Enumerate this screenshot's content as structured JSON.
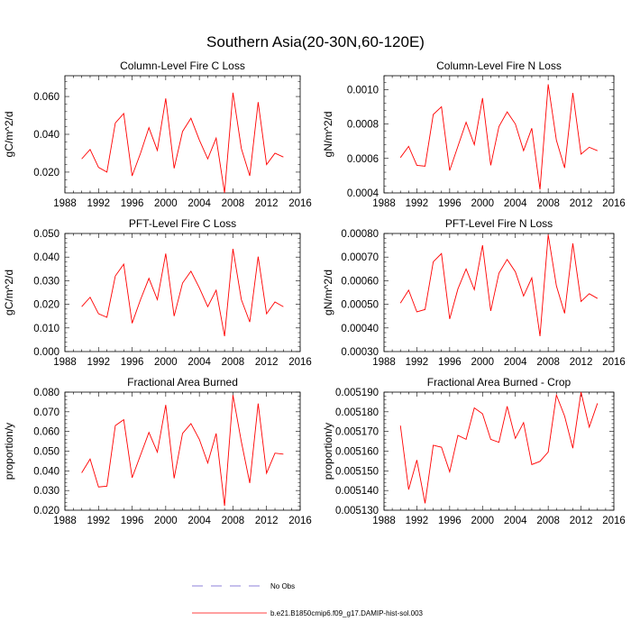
{
  "title": "Southern Asia(20-30N,60-120E)",
  "colors": {
    "series": "#ff0000",
    "obs": "#6a5acd",
    "axis": "#000000"
  },
  "legend": {
    "obs_label": "No Obs",
    "model_label": "b.e21.B1850cmip6.f09_g17.DAMIP-hist-sol.003"
  },
  "chart_data": [
    {
      "type": "line",
      "title": "Column-Level Fire C Loss",
      "ylabel": "gC/m^2/d",
      "xlim": [
        1988,
        2016
      ],
      "xticks": [
        1988,
        1992,
        1996,
        2000,
        2004,
        2008,
        2012,
        2016
      ],
      "ylim": [
        0.009,
        0.071
      ],
      "yticks": [
        0.02,
        0.04,
        0.06
      ],
      "ytick_labels": [
        "0.020",
        "0.040",
        "0.060"
      ],
      "x": [
        1990,
        1991,
        1992,
        1993,
        1994,
        1995,
        1996,
        1997,
        1998,
        1999,
        2000,
        2001,
        2002,
        2003,
        2004,
        2005,
        2006,
        2007,
        2008,
        2009,
        2010,
        2011,
        2012,
        2013,
        2014
      ],
      "series": [
        {
          "values": [
            0.027,
            0.032,
            0.0225,
            0.02,
            0.046,
            0.051,
            0.018,
            0.03,
            0.0435,
            0.0315,
            0.059,
            0.022,
            0.0415,
            0.0485,
            0.037,
            0.027,
            0.038,
            0.009,
            0.062,
            0.0325,
            0.018,
            0.057,
            0.024,
            0.03,
            0.028
          ]
        }
      ]
    },
    {
      "type": "line",
      "title": "Column-Level Fire N Loss",
      "ylabel": "gN/m^2/d",
      "xlim": [
        1988,
        2016
      ],
      "xticks": [
        1988,
        1992,
        1996,
        2000,
        2004,
        2008,
        2012,
        2016
      ],
      "ylim": [
        0.0004,
        0.00108
      ],
      "yticks": [
        0.0004,
        0.0006,
        0.0008,
        0.001
      ],
      "ytick_labels": [
        "0.0004",
        "0.0006",
        "0.0008",
        "0.0010"
      ],
      "x": [
        1990,
        1991,
        1992,
        1993,
        1994,
        1995,
        1996,
        1997,
        1998,
        1999,
        2000,
        2001,
        2002,
        2003,
        2004,
        2005,
        2006,
        2007,
        2008,
        2009,
        2010,
        2011,
        2012,
        2013,
        2014
      ],
      "series": [
        {
          "values": [
            0.000605,
            0.00067,
            0.00056,
            0.000555,
            0.000855,
            0.0009,
            0.00053,
            0.00067,
            0.00081,
            0.00068,
            0.00095,
            0.00056,
            0.000785,
            0.00087,
            0.0008,
            0.000645,
            0.000775,
            0.00042,
            0.00103,
            0.000705,
            0.000545,
            0.00098,
            0.000625,
            0.000665,
            0.000645
          ]
        }
      ]
    },
    {
      "type": "line",
      "title": "PFT-Level Fire C Loss",
      "ylabel": "gC/m^2/d",
      "xlim": [
        1988,
        2016
      ],
      "xticks": [
        1988,
        1992,
        1996,
        2000,
        2004,
        2008,
        2012,
        2016
      ],
      "ylim": [
        0,
        0.05
      ],
      "yticks": [
        0,
        0.01,
        0.02,
        0.03,
        0.04,
        0.05
      ],
      "ytick_labels": [
        "0.000",
        "0.010",
        "0.020",
        "0.030",
        "0.040",
        "0.050"
      ],
      "x": [
        1990,
        1991,
        1992,
        1993,
        1994,
        1995,
        1996,
        1997,
        1998,
        1999,
        2000,
        2001,
        2002,
        2003,
        2004,
        2005,
        2006,
        2007,
        2008,
        2009,
        2010,
        2011,
        2012,
        2013,
        2014
      ],
      "series": [
        {
          "values": [
            0.019,
            0.023,
            0.016,
            0.0145,
            0.032,
            0.037,
            0.012,
            0.022,
            0.031,
            0.022,
            0.0415,
            0.015,
            0.029,
            0.034,
            0.027,
            0.019,
            0.026,
            0.0065,
            0.0435,
            0.022,
            0.0125,
            0.0402,
            0.016,
            0.021,
            0.019
          ]
        }
      ]
    },
    {
      "type": "line",
      "title": "PFT-Level Fire N Loss",
      "ylabel": "gN/m^2/d",
      "xlim": [
        1988,
        2016
      ],
      "xticks": [
        1988,
        1992,
        1996,
        2000,
        2004,
        2008,
        2012,
        2016
      ],
      "ylim": [
        0.0003,
        0.0008
      ],
      "yticks": [
        0.0003,
        0.0004,
        0.0005,
        0.0006,
        0.0007,
        0.0008
      ],
      "ytick_labels": [
        "0.00030",
        "0.00040",
        "0.00050",
        "0.00060",
        "0.00070",
        "0.00080"
      ],
      "x": [
        1990,
        1991,
        1992,
        1993,
        1994,
        1995,
        1996,
        1997,
        1998,
        1999,
        2000,
        2001,
        2002,
        2003,
        2004,
        2005,
        2006,
        2007,
        2008,
        2009,
        2010,
        2011,
        2012,
        2013,
        2014
      ],
      "series": [
        {
          "values": [
            0.000505,
            0.00056,
            0.000468,
            0.000478,
            0.00068,
            0.000715,
            0.000438,
            0.000565,
            0.00065,
            0.000562,
            0.00075,
            0.000472,
            0.000632,
            0.00069,
            0.000638,
            0.000535,
            0.000612,
            0.000365,
            0.000795,
            0.000578,
            0.000462,
            0.000758,
            0.000512,
            0.000545,
            0.000525
          ]
        }
      ]
    },
    {
      "type": "line",
      "title": "Fractional Area Burned",
      "ylabel": "proportion/y",
      "xlim": [
        1988,
        2016
      ],
      "xticks": [
        1988,
        1992,
        1996,
        2000,
        2004,
        2008,
        2012,
        2016
      ],
      "ylim": [
        0.02,
        0.08
      ],
      "yticks": [
        0.02,
        0.03,
        0.04,
        0.05,
        0.06,
        0.07,
        0.08
      ],
      "ytick_labels": [
        "0.020",
        "0.030",
        "0.040",
        "0.050",
        "0.060",
        "0.070",
        "0.080"
      ],
      "x": [
        1990,
        1991,
        1992,
        1993,
        1994,
        1995,
        1996,
        1997,
        1998,
        1999,
        2000,
        2001,
        2002,
        2003,
        2004,
        2005,
        2006,
        2007,
        2008,
        2009,
        2010,
        2011,
        2012,
        2013,
        2014
      ],
      "series": [
        {
          "values": [
            0.039,
            0.046,
            0.0318,
            0.0322,
            0.063,
            0.066,
            0.0365,
            0.048,
            0.0595,
            0.0495,
            0.0735,
            0.0362,
            0.059,
            0.064,
            0.056,
            0.044,
            0.059,
            0.0222,
            0.0785,
            0.0548,
            0.0338,
            0.0742,
            0.0388,
            0.049,
            0.0485
          ]
        }
      ]
    },
    {
      "type": "line",
      "title": "Fractional Area Burned - Crop",
      "ylabel": "proportion/y",
      "xlim": [
        1988,
        2016
      ],
      "xticks": [
        1988,
        1992,
        1996,
        2000,
        2004,
        2008,
        2012,
        2016
      ],
      "ylim": [
        0.00513,
        0.00519
      ],
      "yticks": [
        0.00513,
        0.00514,
        0.00515,
        0.00516,
        0.00517,
        0.00518,
        0.00519
      ],
      "ytick_labels": [
        "0.005130",
        "0.005140",
        "0.005150",
        "0.005160",
        "0.005170",
        "0.005180",
        "0.005190"
      ],
      "x": [
        1990,
        1991,
        1992,
        1993,
        1994,
        1995,
        1996,
        1997,
        1998,
        1999,
        2000,
        2001,
        2002,
        2003,
        2004,
        2005,
        2006,
        2007,
        2008,
        2009,
        2010,
        2011,
        2012,
        2013,
        2014
      ],
      "series": [
        {
          "values": [
            0.005173,
            0.0051405,
            0.0051555,
            0.0051335,
            0.005163,
            0.005162,
            0.0051495,
            0.005168,
            0.005166,
            0.005182,
            0.005179,
            0.005166,
            0.0051645,
            0.0051828,
            0.0051665,
            0.0051745,
            0.0051532,
            0.0051548,
            0.0051596,
            0.0051885,
            0.0051778,
            0.0051615,
            0.00519,
            0.0051722,
            0.0051843
          ]
        }
      ]
    }
  ]
}
